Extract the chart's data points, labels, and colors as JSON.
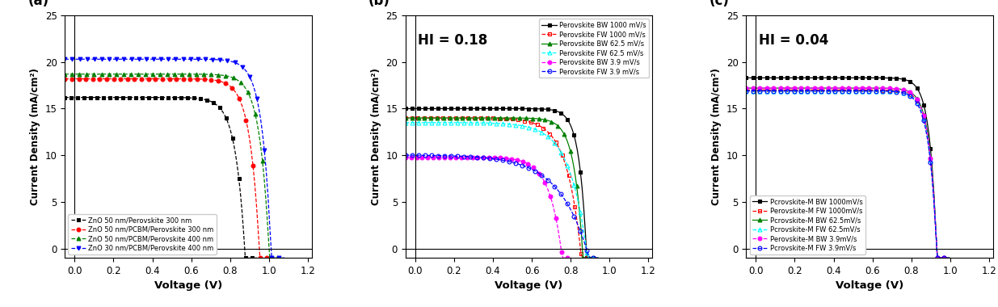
{
  "panel_a": {
    "label": "(a)",
    "xlabel": "Voltage (V)",
    "ylabel": "Current Density (mA/cm²)",
    "xlim": [
      -0.05,
      1.22
    ],
    "ylim": [
      -1,
      25
    ],
    "yticks": [
      0,
      5,
      10,
      15,
      20,
      25
    ],
    "xticks": [
      0.0,
      0.2,
      0.4,
      0.6,
      0.8,
      1.0,
      1.2
    ],
    "series": [
      {
        "label": "ZnO 50 nm/Perovskite 300 nm",
        "color": "black",
        "Jsc": 16.2,
        "Voc": 0.875,
        "nvt": 0.048,
        "marker": "s",
        "ls": "--",
        "filled": true
      },
      {
        "label": "ZnO 50 nm/PCBM/Perovskite 300 nm",
        "color": "red",
        "Jsc": 18.2,
        "Voc": 0.95,
        "nvt": 0.048,
        "marker": "o",
        "ls": "--",
        "filled": true
      },
      {
        "label": "ZnO 50 nm/PCBM/Perovskite 400 nm",
        "color": "green",
        "Jsc": 18.7,
        "Voc": 1.0,
        "nvt": 0.048,
        "marker": "^",
        "ls": "--",
        "filled": true
      },
      {
        "label": "ZnO 30 nm/PCBM/Perovskite 400 nm",
        "color": "blue",
        "Jsc": 20.3,
        "Voc": 1.01,
        "nvt": 0.046,
        "marker": "v",
        "ls": "--",
        "filled": true
      }
    ],
    "legend_loc": "lower left"
  },
  "panel_b": {
    "label": "(b)",
    "hi_text": "HI = 0.18",
    "xlabel": "Voltage (V)",
    "ylabel": "Current Density (mA/cm²)",
    "xlim": [
      -0.05,
      1.22
    ],
    "ylim": [
      -1,
      25
    ],
    "yticks": [
      0,
      5,
      10,
      15,
      20,
      25
    ],
    "xticks": [
      0.0,
      0.2,
      0.4,
      0.6,
      0.8,
      1.0,
      1.2
    ],
    "series": [
      {
        "label": "Perovskite BW 1000 mV/s",
        "color": "black",
        "Jsc": 15.0,
        "Voc": 0.88,
        "nvt": 0.038,
        "marker": "s",
        "ls": "-",
        "filled": true
      },
      {
        "label": "Perovskite FW 1000 mV/s",
        "color": "red",
        "Jsc": 14.0,
        "Voc": 0.85,
        "nvt": 0.075,
        "marker": "s",
        "ls": "--",
        "filled": false
      },
      {
        "label": "Perovskite BW 62.5 mV/s",
        "color": "green",
        "Jsc": 14.0,
        "Voc": 0.86,
        "nvt": 0.045,
        "marker": "^",
        "ls": "-",
        "filled": true
      },
      {
        "label": "Perovskite FW 62.5 mV/s",
        "color": "cyan",
        "Jsc": 13.5,
        "Voc": 0.88,
        "nvt": 0.09,
        "marker": "^",
        "ls": "--",
        "filled": false
      },
      {
        "label": "Perovskite BW 3.9 mV/s",
        "color": "magenta",
        "Jsc": 9.8,
        "Voc": 0.75,
        "nvt": 0.065,
        "marker": "o",
        "ls": "--",
        "filled": true
      },
      {
        "label": "Perovskite FW 3.9 mV/s",
        "color": "blue",
        "Jsc": 10.0,
        "Voc": 0.88,
        "nvt": 0.15,
        "marker": "o",
        "ls": "--",
        "filled": false
      }
    ],
    "legend_loc": "upper right"
  },
  "panel_c": {
    "label": "(c)",
    "hi_text": "HI = 0.04",
    "xlabel": "Voltage (V)",
    "ylabel": "Current Density (mA/cm²)",
    "xlim": [
      -0.05,
      1.22
    ],
    "ylim": [
      -1,
      25
    ],
    "yticks": [
      0,
      5,
      10,
      15,
      20,
      25
    ],
    "xticks": [
      0.0,
      0.2,
      0.4,
      0.6,
      0.8,
      1.0,
      1.2
    ],
    "series": [
      {
        "label": "Pcrovskite-M BW 1000mV/s",
        "color": "black",
        "Jsc": 18.3,
        "Voc": 0.93,
        "nvt": 0.036,
        "marker": "s",
        "ls": "-",
        "filled": true
      },
      {
        "label": "Perovskite-M FW 1000mV/s",
        "color": "red",
        "Jsc": 17.0,
        "Voc": 0.93,
        "nvt": 0.038,
        "marker": "s",
        "ls": "--",
        "filled": false
      },
      {
        "label": "Pcrovskite-M BW 62.5mV/s",
        "color": "green",
        "Jsc": 17.2,
        "Voc": 0.93,
        "nvt": 0.037,
        "marker": "^",
        "ls": "-",
        "filled": true
      },
      {
        "label": "Pcrovskite-M FW 62.5mV/s",
        "color": "cyan",
        "Jsc": 16.9,
        "Voc": 0.93,
        "nvt": 0.038,
        "marker": "^",
        "ls": "--",
        "filled": false
      },
      {
        "label": "Perovskite-M BW 3.9mV/s",
        "color": "magenta",
        "Jsc": 17.2,
        "Voc": 0.93,
        "nvt": 0.038,
        "marker": "o",
        "ls": "--",
        "filled": true
      },
      {
        "label": "Pcrovskite-M FW 3.9mV/s",
        "color": "blue",
        "Jsc": 16.9,
        "Voc": 0.93,
        "nvt": 0.04,
        "marker": "o",
        "ls": "--",
        "filled": false
      }
    ],
    "legend_loc": "lower left"
  }
}
